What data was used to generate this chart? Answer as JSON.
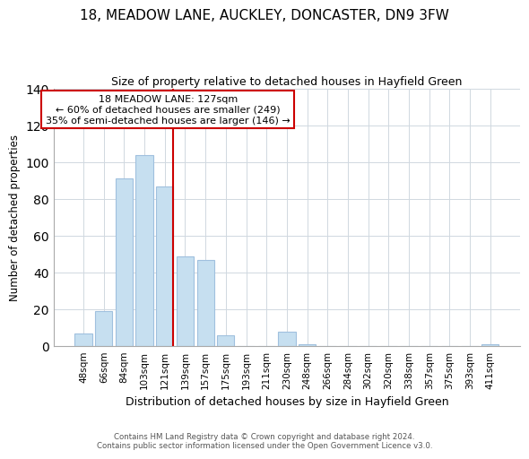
{
  "title": "18, MEADOW LANE, AUCKLEY, DONCASTER, DN9 3FW",
  "subtitle": "Size of property relative to detached houses in Hayfield Green",
  "xlabel": "Distribution of detached houses by size in Hayfield Green",
  "ylabel": "Number of detached properties",
  "bar_labels": [
    "48sqm",
    "66sqm",
    "84sqm",
    "103sqm",
    "121sqm",
    "139sqm",
    "157sqm",
    "175sqm",
    "193sqm",
    "211sqm",
    "230sqm",
    "248sqm",
    "266sqm",
    "284sqm",
    "302sqm",
    "320sqm",
    "338sqm",
    "357sqm",
    "375sqm",
    "393sqm",
    "411sqm"
  ],
  "bar_values": [
    7,
    19,
    91,
    104,
    87,
    49,
    47,
    6,
    0,
    0,
    8,
    1,
    0,
    0,
    0,
    0,
    0,
    0,
    0,
    0,
    1
  ],
  "bar_color": "#c6dff0",
  "bar_edge_color": "#a0c0de",
  "highlight_bar_index": 4,
  "highlight_color": "#cc0000",
  "annotation_title": "18 MEADOW LANE: 127sqm",
  "annotation_line1": "← 60% of detached houses are smaller (249)",
  "annotation_line2": "35% of semi-detached houses are larger (146) →",
  "annotation_box_color": "#ffffff",
  "annotation_box_edge": "#cc0000",
  "ylim": [
    0,
    140
  ],
  "yticks": [
    0,
    20,
    40,
    60,
    80,
    100,
    120,
    140
  ],
  "footer_line1": "Contains HM Land Registry data © Crown copyright and database right 2024.",
  "footer_line2": "Contains public sector information licensed under the Open Government Licence v3.0.",
  "bg_color": "#ffffff",
  "grid_color": "#d0d8e0"
}
